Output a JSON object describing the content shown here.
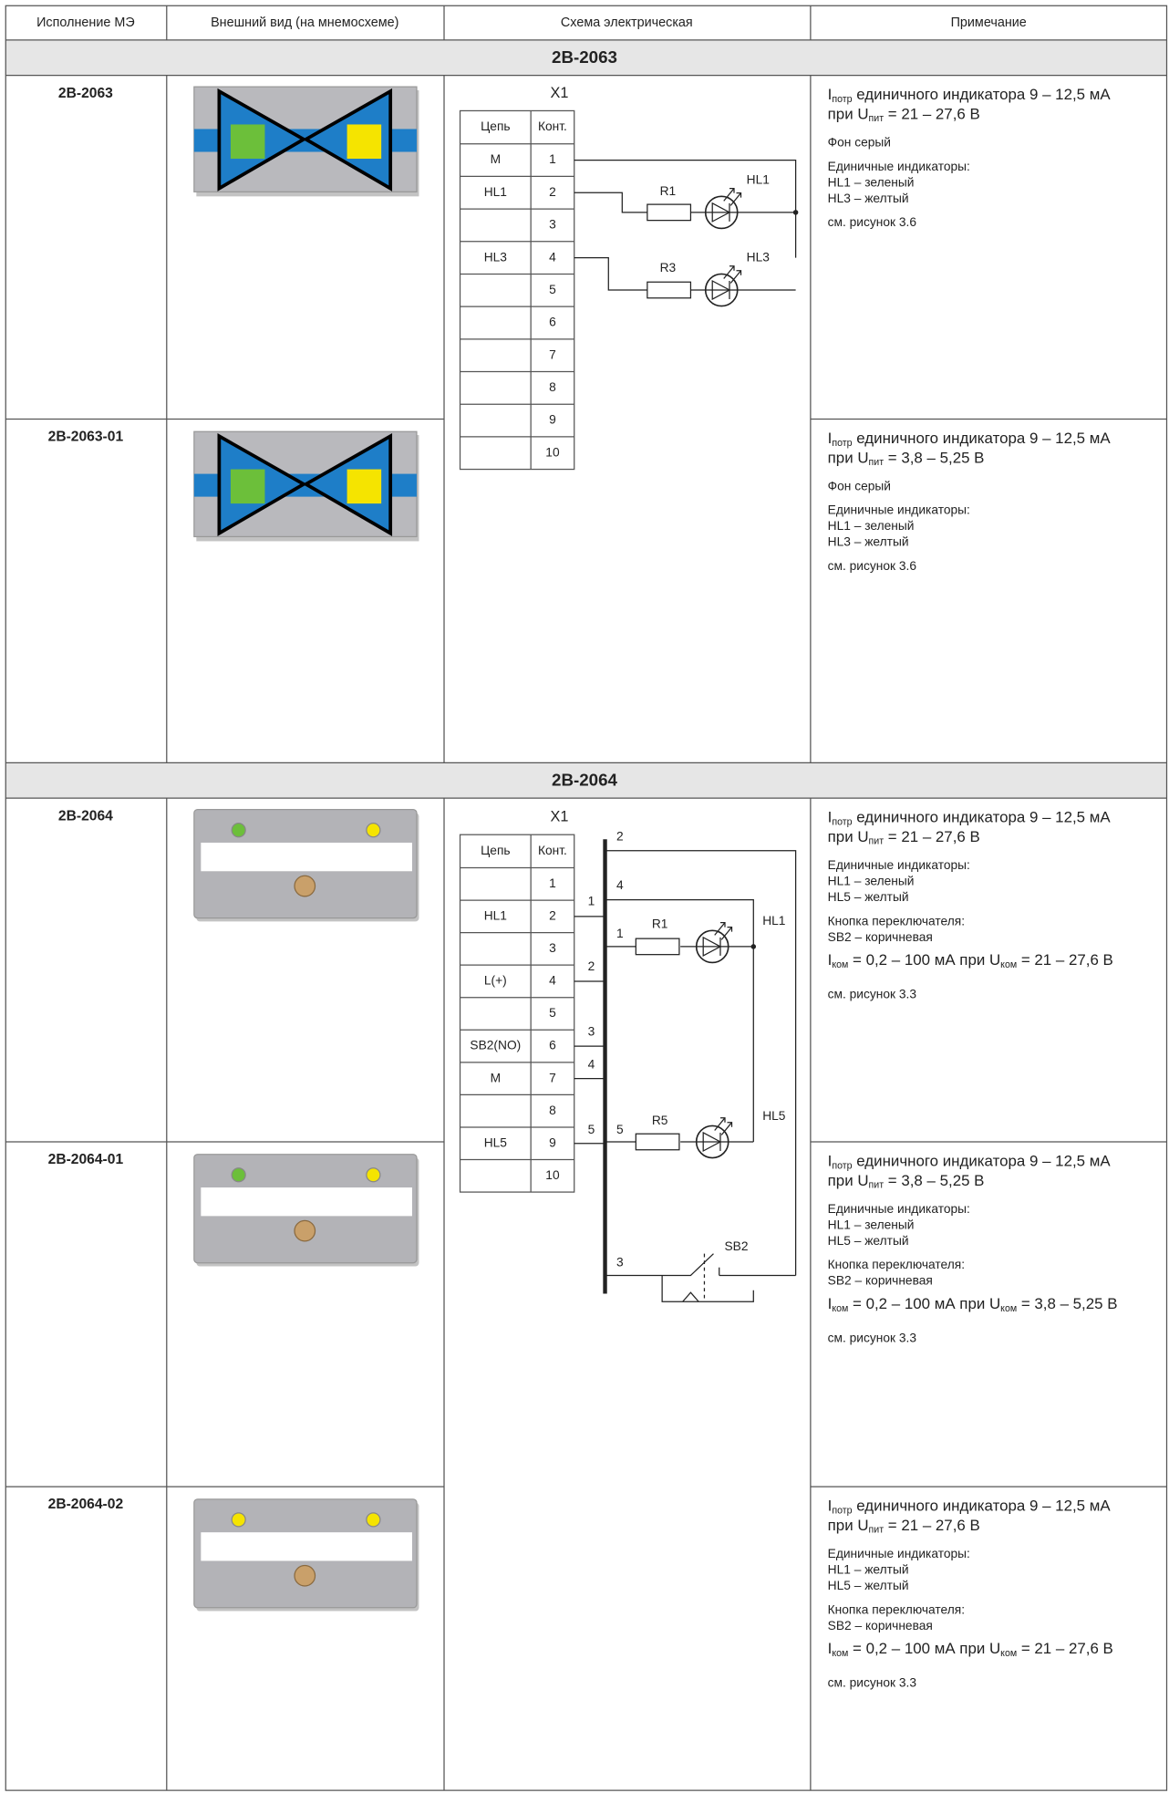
{
  "header": [
    "Исполнение МЭ",
    "Внешний вид (на мнемосхеме)",
    "Схема электрическая",
    "Примечание"
  ],
  "sections": [
    {
      "title": "2В-2063",
      "scheme": {
        "connector": "X1",
        "columns": [
          "Цепь",
          "Конт."
        ],
        "rows": [
          [
            "М",
            1
          ],
          [
            "HL1",
            2
          ],
          [
            null,
            3
          ],
          [
            "HL3",
            4
          ],
          [
            null,
            5
          ],
          [
            null,
            6
          ],
          [
            null,
            7
          ],
          [
            null,
            8
          ],
          [
            null,
            9
          ],
          [
            null,
            10
          ]
        ],
        "labels": [
          "R1",
          "HL1",
          "R3",
          "HL3"
        ]
      },
      "rows": [
        {
          "name": "2В-2063",
          "note": [
            [
              [
                "I",
                {
                  "sub": "потр"
                },
                " единичного индикатора 9 – 12,5 мА"
              ],
              [
                "при U",
                {
                  "sub": "пит"
                },
                " = 21 – 27,6 В"
              ]
            ],
            [
              [
                "Фон серый"
              ]
            ],
            [
              [
                "Единичные индикаторы:"
              ],
              [
                "HL1 – зеленый"
              ],
              [
                "HL3 – желтый"
              ]
            ],
            [
              [
                "см. рисунок 3.6"
              ]
            ]
          ]
        },
        {
          "name": "2В-2063-01",
          "note": [
            [
              [
                "I",
                {
                  "sub": "потр"
                },
                " единичного индикатора 9 – 12,5 мА"
              ],
              [
                "при U",
                {
                  "sub": "пит"
                },
                " = 3,8 – 5,25 В"
              ]
            ],
            [
              [
                "Фон серый"
              ]
            ],
            [
              [
                "Единичные индикаторы:"
              ],
              [
                "HL1 – зеленый"
              ],
              [
                "HL3 – желтый"
              ]
            ],
            [
              [
                "см. рисунок 3.6"
              ]
            ]
          ]
        }
      ]
    },
    {
      "title": "2В-2064",
      "scheme": {
        "connector": "X1",
        "columns": [
          "Цепь",
          "Конт."
        ],
        "rows": [
          [
            null,
            1
          ],
          [
            "HL1",
            2
          ],
          [
            null,
            3
          ],
          [
            "L(+)",
            4
          ],
          [
            null,
            5
          ],
          [
            "SB2(NO)",
            6
          ],
          [
            "М",
            7
          ],
          [
            null,
            8
          ],
          [
            "HL5",
            9
          ],
          [
            null,
            10
          ]
        ],
        "labels": [
          2,
          4,
          1,
          1,
          2,
          3,
          4,
          5,
          5,
          "R1",
          "HL1",
          "R5",
          "HL5",
          3,
          "SB2"
        ]
      },
      "rows": [
        {
          "name": "2В-2064",
          "note": [
            [
              [
                "I",
                {
                  "sub": "потр"
                },
                " единичного индикатора 9 – 12,5 мА"
              ],
              [
                "при U",
                {
                  "sub": "пит"
                },
                " = 21 – 27,6 В"
              ]
            ],
            [
              [
                "Единичные индикаторы:"
              ],
              [
                "HL1 – зеленый"
              ],
              [
                "HL5 – желтый"
              ]
            ],
            [
              [
                "Кнопка переключателя:"
              ],
              [
                "SB2 – коричневая"
              ]
            ],
            [
              [
                "I",
                {
                  "sub": "ком"
                },
                " = 0,2 – 100 мА при U",
                {
                  "sub": "ком"
                },
                " = 21 – 27,6 В"
              ]
            ],
            [
              [
                "см. рисунок 3.3"
              ]
            ]
          ]
        },
        {
          "name": "2В-2064-01",
          "note": [
            [
              [
                "I",
                {
                  "sub": "потр"
                },
                " единичного индикатора 9 – 12,5 мА"
              ],
              [
                "при U",
                {
                  "sub": "пит"
                },
                " = 3,8 – 5,25 В"
              ]
            ],
            [
              [
                "Единичные индикаторы:"
              ],
              [
                "HL1 – зеленый"
              ],
              [
                "HL5 – желтый"
              ]
            ],
            [
              [
                "Кнопка переключателя:"
              ],
              [
                "SB2 – коричневая"
              ]
            ],
            [
              [
                "I",
                {
                  "sub": "ком"
                },
                " = 0,2 – 100 мА при U",
                {
                  "sub": "ком"
                },
                " = 3,8 – 5,25 В"
              ]
            ],
            [
              [
                "см. рисунок 3.3"
              ]
            ]
          ]
        },
        {
          "name": "2В-2064-02",
          "note": [
            [
              [
                "I",
                {
                  "sub": "потр"
                },
                " единичного индикатора 9 – 12,5 мА"
              ],
              [
                "при U",
                {
                  "sub": "пит"
                },
                " = 21 – 27,6 В"
              ]
            ],
            [
              [
                "Единичные индикаторы:"
              ],
              [
                "HL1 – желтый"
              ],
              [
                "HL5 – желтый"
              ]
            ],
            [
              [
                "Кнопка переключателя:"
              ],
              [
                "SB2 – коричневая"
              ]
            ],
            [
              [
                "I",
                {
                  "sub": "ком"
                },
                " = 0,2 – 100 мА при U",
                {
                  "sub": "ком"
                },
                " = 21 – 27,6 В"
              ]
            ],
            [
              [
                "см. рисунок 3.3"
              ]
            ]
          ]
        }
      ]
    }
  ]
}
